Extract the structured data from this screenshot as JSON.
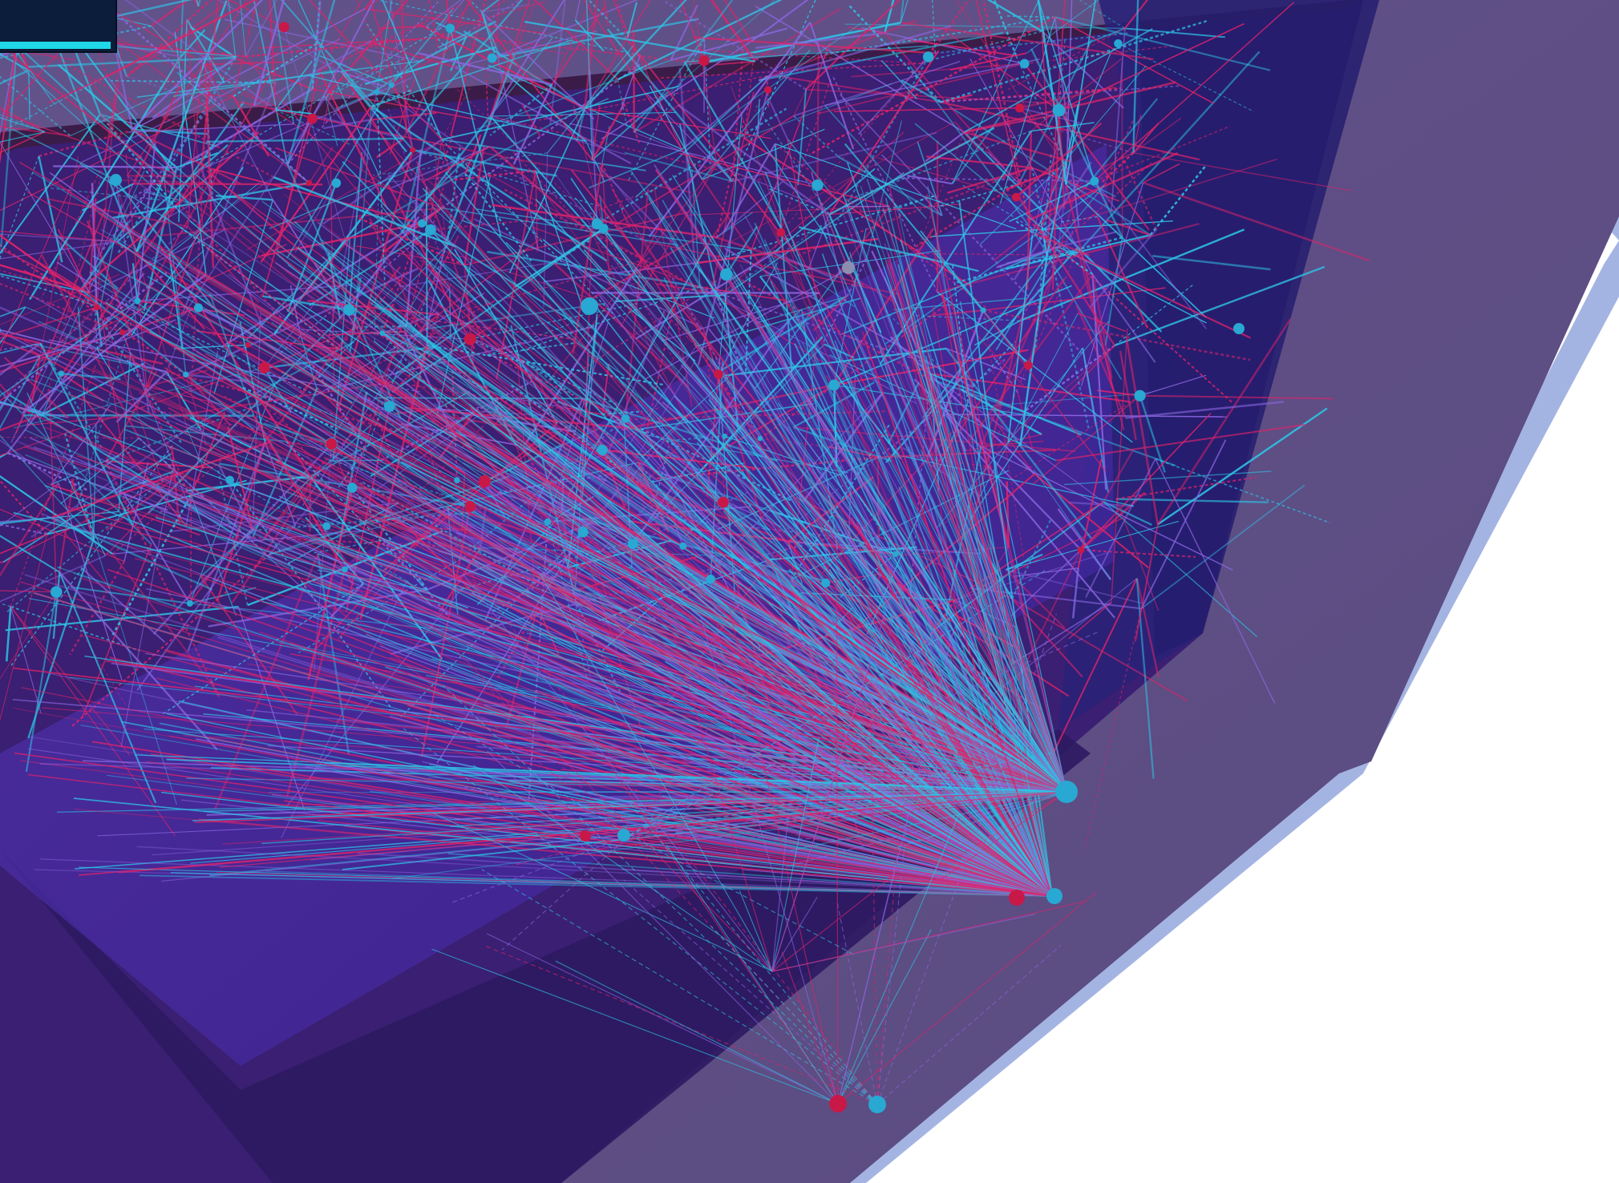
{
  "scene": {
    "kind": "3d-network-visualization",
    "background_color": "#ffffff",
    "colors": {
      "outer_plane": "#5e5083",
      "outer_plane_edge": "#a4b4e2",
      "inner_plane": "#3a1f72",
      "inner_plane_dark": "#281a6a",
      "back_panel": "#2a2278",
      "glow_plane": "#4a2ea8",
      "edge_cyan": "#2ec4e6",
      "edge_pink": "#e0236a",
      "edge_violet": "#8b66e0",
      "node_cyan": "#28a8d2",
      "node_pink": "#c81848"
    }
  },
  "hud": {
    "progress": 0.97,
    "panel_color": "#0b1d3a",
    "fill_color": "#20d8e8"
  }
}
